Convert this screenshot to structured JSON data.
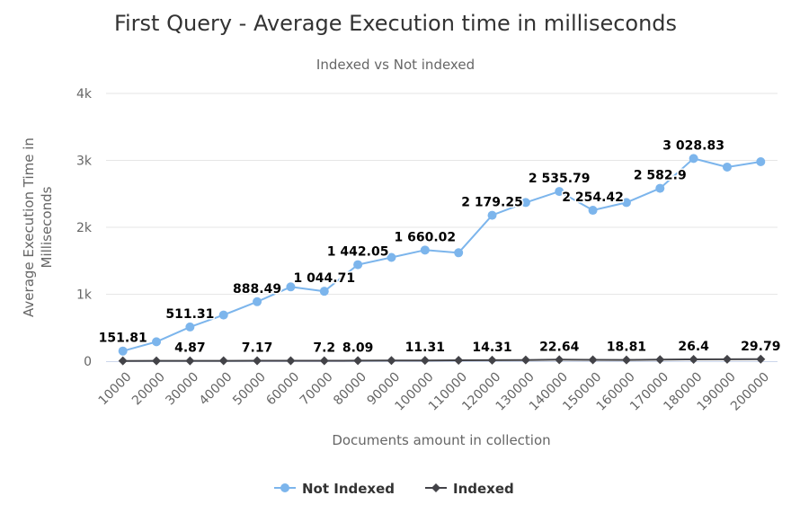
{
  "chart_data": {
    "type": "line",
    "title": "First Query - Average Execution time in milliseconds",
    "subtitle": "Indexed vs Not indexed",
    "xlabel": "Documents amount in collection",
    "ylabel_lines": [
      "Average Execution Time in",
      "Milliseconds"
    ],
    "x": [
      "10000",
      "20000",
      "30000",
      "40000",
      "50000",
      "60000",
      "70000",
      "80000",
      "90000",
      "100000",
      "110000",
      "120000",
      "130000",
      "140000",
      "150000",
      "160000",
      "170000",
      "180000",
      "190000",
      "200000"
    ],
    "ylim": [
      0,
      4000
    ],
    "yticks": [
      {
        "value": 0,
        "label": "0"
      },
      {
        "value": 1000,
        "label": "1k"
      },
      {
        "value": 2000,
        "label": "2k"
      },
      {
        "value": 3000,
        "label": "3k"
      },
      {
        "value": 4000,
        "label": "4k"
      }
    ],
    "grid": true,
    "legend_position": "bottom-center",
    "series": [
      {
        "name": "Not Indexed",
        "color": "#7cb5ec",
        "marker": "circle",
        "values": [
          151.81,
          290,
          511.31,
          690,
          888.49,
          1110,
          1044.71,
          1442.05,
          1550,
          1660.02,
          1620,
          2179.25,
          2370,
          2535.79,
          2254.42,
          2370,
          2582.9,
          3028.83,
          2900,
          2980
        ],
        "labels": [
          "151.81",
          "",
          "511.31",
          "",
          "888.49",
          "",
          "1 044.71",
          "1 442.05",
          "",
          "1 660.02",
          "",
          "2 179.25",
          "",
          "2 535.79",
          "2 254.42",
          "",
          "2 582.9",
          "3 028.83",
          "",
          ""
        ]
      },
      {
        "name": "Indexed",
        "color": "#434348",
        "marker": "diamond",
        "values": [
          4.5,
          4.7,
          4.87,
          6,
          7.17,
          7.1,
          7.2,
          8.09,
          10,
          11.31,
          13,
          14.31,
          18,
          22.64,
          20,
          18.81,
          24,
          26.4,
          28,
          29.79
        ],
        "labels": [
          "",
          "",
          "4.87",
          "",
          "7.17",
          "",
          "7.2",
          "8.09",
          "",
          "11.31",
          "",
          "14.31",
          "",
          "22.64",
          "",
          "18.81",
          "",
          "26.4",
          "",
          "29.79"
        ]
      }
    ]
  }
}
